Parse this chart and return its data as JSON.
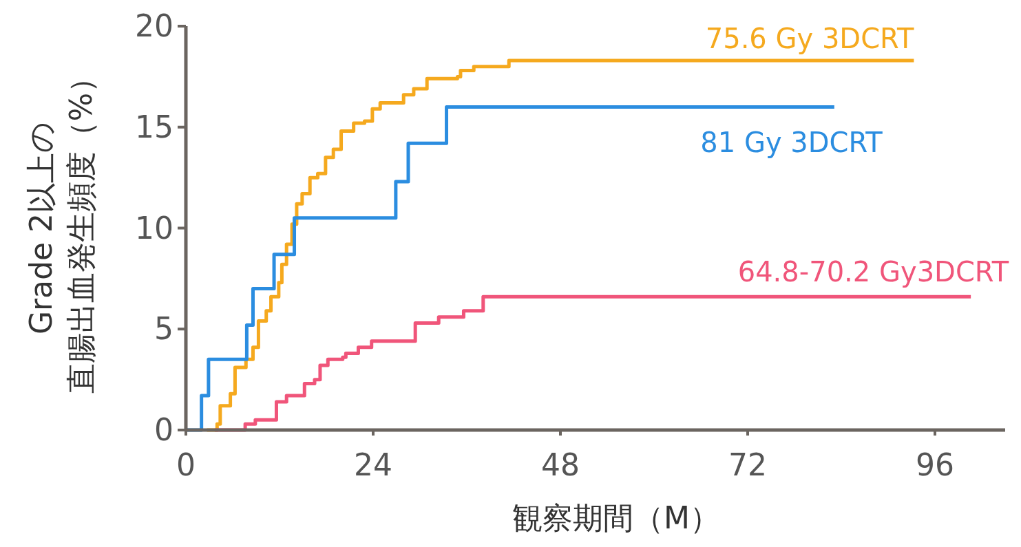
{
  "chart_data": {
    "type": "step",
    "xlabel": "観察期間（M）",
    "ylabel": "Grade 2以上の直腸出血発生頻度（%）",
    "xlim": [
      0,
      105
    ],
    "ylim": [
      0,
      20
    ],
    "xticks": [
      0,
      24,
      48,
      72,
      96
    ],
    "yticks": [
      0,
      5,
      10,
      15,
      20
    ],
    "grid": false,
    "legend": false,
    "marker": "none",
    "line_style": "solid",
    "series": [
      {
        "name": "75.6 Gy 3DCRT",
        "color": "#f5a91e",
        "x": [
          2.7,
          4.0,
          4.4,
          5.7,
          6.3,
          7.7,
          8.6,
          9.3,
          10.3,
          10.9,
          11.9,
          12.3,
          12.9,
          13.6,
          14.2,
          14.9,
          15.9,
          16.9,
          17.9,
          18.9,
          19.9,
          21.5,
          22.9,
          23.9,
          24.9,
          27.9,
          29.2,
          30.9,
          34.8,
          35.2,
          36.9,
          41.4,
          93.3
        ],
        "values": [
          0,
          0.3,
          1.2,
          1.8,
          3.1,
          3.5,
          4.1,
          5.4,
          5.9,
          6.6,
          7.3,
          8.2,
          9.2,
          10.2,
          11.2,
          11.7,
          12.5,
          12.7,
          13.5,
          13.9,
          14.8,
          15.2,
          15.3,
          15.9,
          16.2,
          16.6,
          16.9,
          17.4,
          17.5,
          17.8,
          18.0,
          18.3,
          18.3
        ]
      },
      {
        "name": "81 Gy 3DCRT",
        "color": "#2b8de0",
        "x": [
          0,
          2.0,
          2.9,
          7.8,
          8.6,
          11.3,
          13.9,
          26.9,
          28.5,
          33.4,
          83.1
        ],
        "values": [
          0,
          1.7,
          3.5,
          5.2,
          7.0,
          8.7,
          10.5,
          12.3,
          14.2,
          16.0,
          16.0
        ]
      },
      {
        "name": "64.8-70.2 Gy3DCRT",
        "color": "#f0557a",
        "x": [
          3.7,
          7.6,
          8.9,
          11.6,
          12.9,
          15.2,
          16.5,
          17.2,
          18.2,
          20.1,
          20.5,
          22.1,
          23.8,
          29.4,
          32.4,
          35.6,
          38.1,
          100.6
        ],
        "values": [
          0,
          0.3,
          0.5,
          1.4,
          1.7,
          2.3,
          2.5,
          3.2,
          3.5,
          3.6,
          3.8,
          4.1,
          4.4,
          5.3,
          5.6,
          5.9,
          6.6,
          6.6
        ]
      }
    ]
  }
}
